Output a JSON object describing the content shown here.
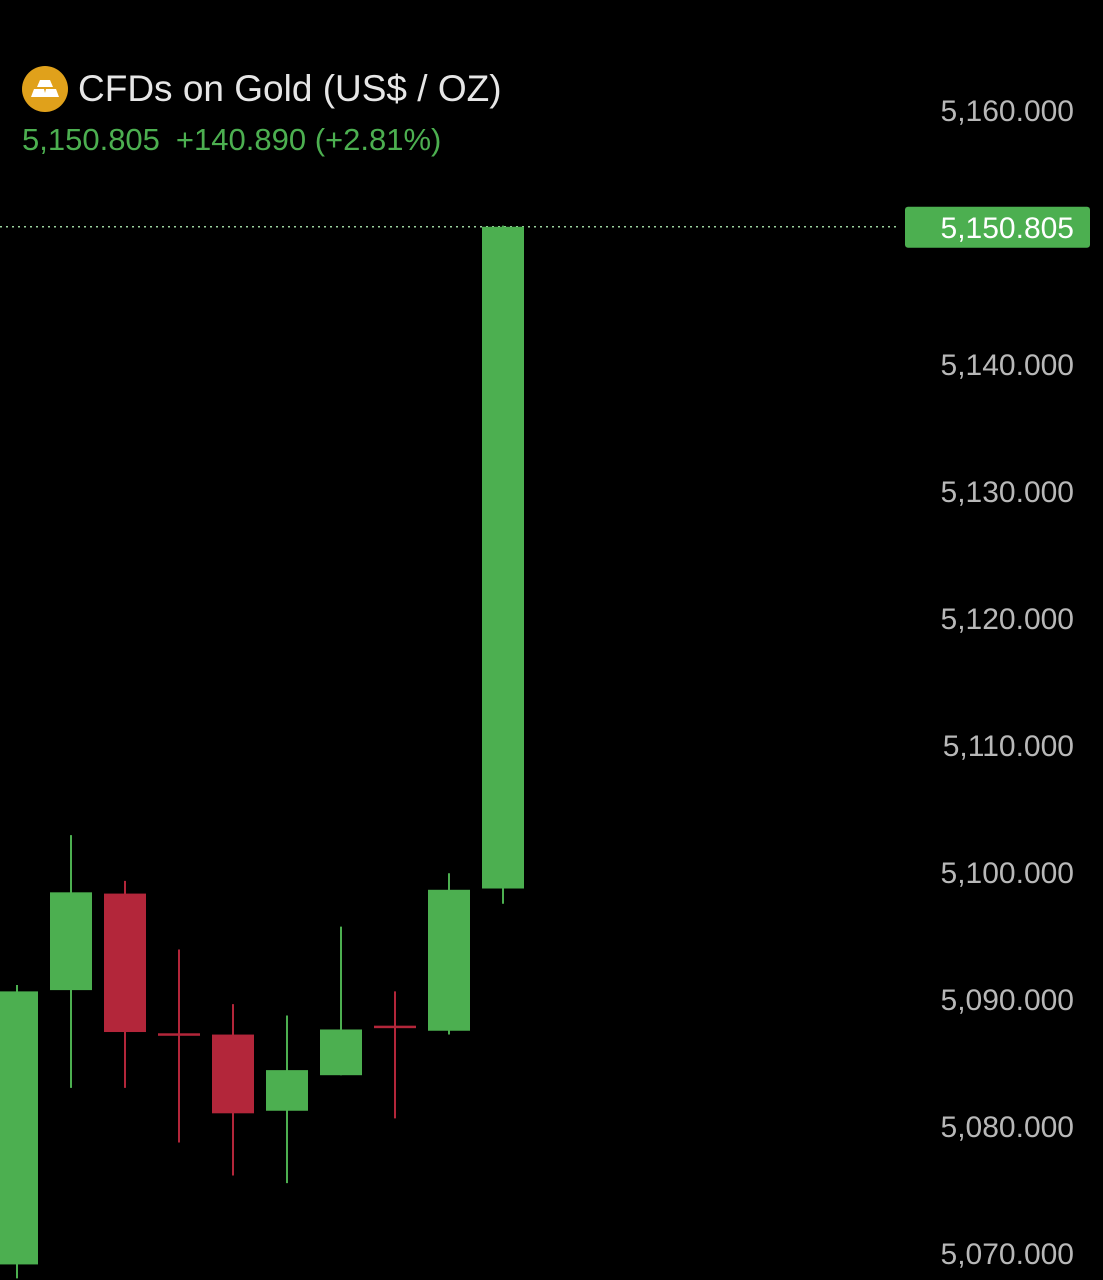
{
  "header": {
    "icon": "gold-bars-icon",
    "title": "CFDs on Gold (US$ / OZ)",
    "last_price": "5,150.805",
    "change": "+140.890",
    "change_pct": "(+2.81%)"
  },
  "chart_data": {
    "type": "candlestick",
    "title": "CFDs on Gold (US$ / OZ)",
    "ylim": [
      5067,
      5165
    ],
    "y_ticks": [
      5160,
      5140,
      5130,
      5120,
      5110,
      5100,
      5090,
      5080,
      5070
    ],
    "y_tick_labels": [
      "5,160.000",
      "5,140.000",
      "5,130.000",
      "5,120.000",
      "5,110.000",
      "5,100.000",
      "5,090.000",
      "5,080.000",
      "5,070.000"
    ],
    "last_price": 5150.805,
    "last_price_label": "5,150.805",
    "colors": {
      "up": "#4caf50",
      "down": "#b3263a",
      "logo": "#e0a11b"
    },
    "candles": [
      {
        "open": 5069.1,
        "high": 5091.1,
        "low": 5068.0,
        "close": 5090.6
      },
      {
        "open": 5090.7,
        "high": 5102.9,
        "low": 5083.0,
        "close": 5098.4
      },
      {
        "open": 5098.3,
        "high": 5099.3,
        "low": 5083.0,
        "close": 5087.4
      },
      {
        "open": 5087.3,
        "high": 5093.9,
        "low": 5078.7,
        "close": 5087.2
      },
      {
        "open": 5087.2,
        "high": 5089.6,
        "low": 5076.1,
        "close": 5081.0
      },
      {
        "open": 5081.2,
        "high": 5088.7,
        "low": 5075.5,
        "close": 5084.4
      },
      {
        "open": 5084.0,
        "high": 5095.7,
        "low": 5084.0,
        "close": 5087.6
      },
      {
        "open": 5087.9,
        "high": 5090.6,
        "low": 5080.6,
        "close": 5087.8
      },
      {
        "open": 5087.5,
        "high": 5099.9,
        "low": 5087.2,
        "close": 5098.6
      },
      {
        "open": 5098.7,
        "high": 5150.9,
        "low": 5097.5,
        "close": 5150.805
      }
    ]
  }
}
